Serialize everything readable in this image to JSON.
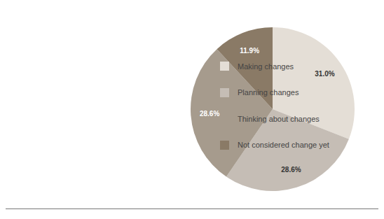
{
  "chart_data": {
    "type": "pie",
    "categories": [
      "Making changes",
      "Planning changes",
      "Thinking about changes",
      "Not considered change yet"
    ],
    "values": [
      31.0,
      28.6,
      28.6,
      11.9
    ],
    "value_labels": [
      "31.0%",
      "28.6%",
      "28.6%",
      "11.9%"
    ],
    "colors": [
      "#e4ded6",
      "#c5bdb5",
      "#a69b8d",
      "#8a7a66"
    ],
    "data_labels": true,
    "legend": "right"
  }
}
